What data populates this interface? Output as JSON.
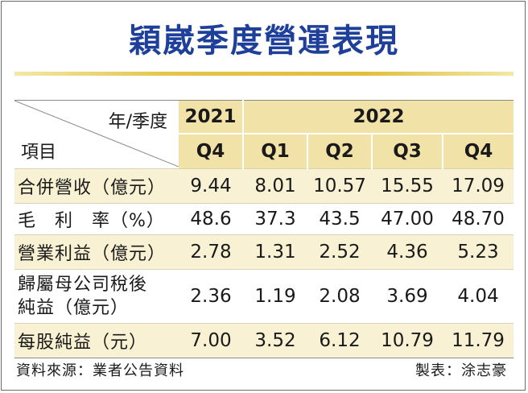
{
  "title": "穎崴季度營運表現",
  "header": {
    "corner_top": "年/季度",
    "corner_bottom": "項目",
    "years": [
      "2021",
      "2022"
    ],
    "quarters": [
      "Q4",
      "Q1",
      "Q2",
      "Q3",
      "Q4"
    ]
  },
  "rows": [
    {
      "label": "合併營收（億元）",
      "values": [
        "9.44",
        "8.01",
        "10.57",
        "15.55",
        "17.09"
      ]
    },
    {
      "label": "毛　利　率（%）",
      "values": [
        "48.6",
        "37.3",
        "43.5",
        "47.00",
        "48.70"
      ]
    },
    {
      "label": "營業利益（億元）",
      "values": [
        "2.78",
        "1.31",
        "2.52",
        "4.36",
        "5.23"
      ]
    },
    {
      "label_line1": "歸屬母公司稅後",
      "label_line2": "純益（億元）",
      "values": [
        "2.36",
        "1.19",
        "2.08",
        "3.69",
        "4.04"
      ]
    },
    {
      "label": "每股純益（元）",
      "values": [
        "7.00",
        "3.52",
        "6.12",
        "10.79",
        "11.79"
      ]
    }
  ],
  "footer": {
    "source": "資料來源：業者公告資料",
    "credit": "製表：涂志豪"
  },
  "colors": {
    "title": "#1e3f9a",
    "header_fill": "#f1e3a8",
    "row_shade": "#f8f1d3",
    "gold_rule": "#e0bf3a"
  }
}
